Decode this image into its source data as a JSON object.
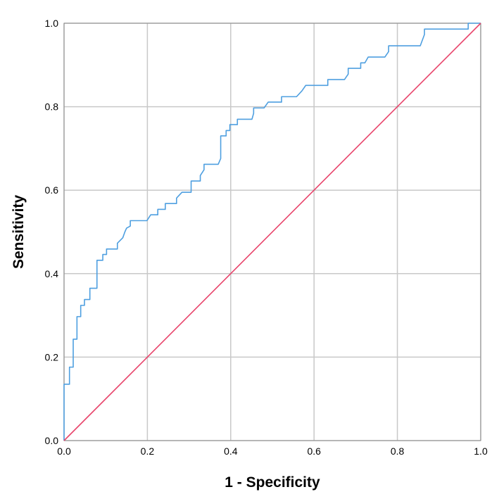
{
  "chart_data": {
    "type": "line",
    "title": "",
    "xlabel": "1 - Specificity",
    "ylabel": "Sensitivity",
    "xlim": [
      0,
      1
    ],
    "ylim": [
      0,
      1
    ],
    "x_ticks": [
      "0.0",
      "0.2",
      "0.4",
      "0.6",
      "0.8",
      "1.0"
    ],
    "y_ticks": [
      "0.0",
      "0.2",
      "0.4",
      "0.6",
      "0.8",
      "1.0"
    ],
    "grid": true,
    "series": [
      {
        "color": "#4e9fe0",
        "points": [
          [
            0.0,
            0.0
          ],
          [
            0.0,
            0.135
          ],
          [
            0.013,
            0.135
          ],
          [
            0.013,
            0.176
          ],
          [
            0.022,
            0.176
          ],
          [
            0.022,
            0.243
          ],
          [
            0.031,
            0.243
          ],
          [
            0.031,
            0.297
          ],
          [
            0.04,
            0.297
          ],
          [
            0.04,
            0.324
          ],
          [
            0.049,
            0.324
          ],
          [
            0.049,
            0.338
          ],
          [
            0.062,
            0.338
          ],
          [
            0.062,
            0.365
          ],
          [
            0.079,
            0.365
          ],
          [
            0.079,
            0.432
          ],
          [
            0.093,
            0.432
          ],
          [
            0.093,
            0.446
          ],
          [
            0.102,
            0.446
          ],
          [
            0.102,
            0.459
          ],
          [
            0.128,
            0.459
          ],
          [
            0.128,
            0.473
          ],
          [
            0.141,
            0.486
          ],
          [
            0.146,
            0.5
          ],
          [
            0.15,
            0.509
          ],
          [
            0.159,
            0.514
          ],
          [
            0.159,
            0.527
          ],
          [
            0.199,
            0.527
          ],
          [
            0.208,
            0.541
          ],
          [
            0.225,
            0.541
          ],
          [
            0.225,
            0.554
          ],
          [
            0.243,
            0.554
          ],
          [
            0.243,
            0.568
          ],
          [
            0.27,
            0.568
          ],
          [
            0.27,
            0.581
          ],
          [
            0.283,
            0.595
          ],
          [
            0.305,
            0.595
          ],
          [
            0.305,
            0.622
          ],
          [
            0.327,
            0.622
          ],
          [
            0.327,
            0.635
          ],
          [
            0.336,
            0.649
          ],
          [
            0.336,
            0.662
          ],
          [
            0.37,
            0.662
          ],
          [
            0.376,
            0.676
          ],
          [
            0.376,
            0.73
          ],
          [
            0.389,
            0.73
          ],
          [
            0.389,
            0.743
          ],
          [
            0.398,
            0.743
          ],
          [
            0.398,
            0.757
          ],
          [
            0.416,
            0.757
          ],
          [
            0.416,
            0.77
          ],
          [
            0.451,
            0.77
          ],
          [
            0.455,
            0.784
          ],
          [
            0.455,
            0.797
          ],
          [
            0.48,
            0.797
          ],
          [
            0.49,
            0.811
          ],
          [
            0.522,
            0.811
          ],
          [
            0.522,
            0.824
          ],
          [
            0.558,
            0.824
          ],
          [
            0.571,
            0.838
          ],
          [
            0.58,
            0.851
          ],
          [
            0.633,
            0.851
          ],
          [
            0.633,
            0.865
          ],
          [
            0.673,
            0.865
          ],
          [
            0.682,
            0.878
          ],
          [
            0.682,
            0.892
          ],
          [
            0.712,
            0.892
          ],
          [
            0.712,
            0.905
          ],
          [
            0.722,
            0.905
          ],
          [
            0.73,
            0.919
          ],
          [
            0.77,
            0.919
          ],
          [
            0.779,
            0.932
          ],
          [
            0.779,
            0.946
          ],
          [
            0.855,
            0.946
          ],
          [
            0.865,
            0.973
          ],
          [
            0.865,
            0.986
          ],
          [
            0.97,
            0.986
          ],
          [
            0.97,
            1.0
          ],
          [
            1.0,
            1.0
          ]
        ]
      },
      {
        "color": "#e8446b",
        "points": [
          [
            0.0,
            0.0
          ],
          [
            1.0,
            1.0
          ]
        ]
      }
    ]
  }
}
